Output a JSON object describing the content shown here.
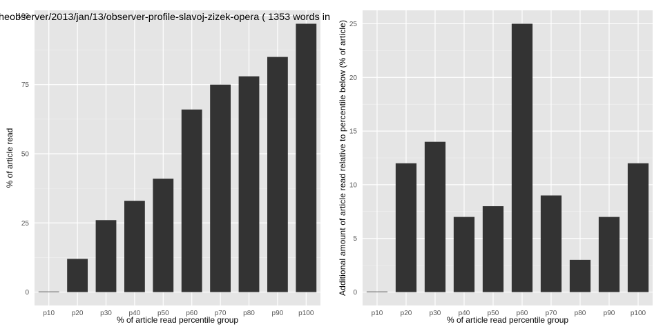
{
  "chart_data": [
    {
      "type": "bar",
      "title": "heobserver/2013/jan/13/observer-profile-slavoj-zizek-opera ( 1353 words in",
      "xlabel": "% of article read percentile group",
      "ylabel": "% of article read",
      "categories": [
        "p10",
        "p20",
        "p30",
        "p40",
        "p50",
        "p60",
        "p70",
        "p80",
        "p90",
        "p100"
      ],
      "values": [
        0,
        12,
        26,
        33,
        41,
        66,
        75,
        78,
        85,
        97
      ],
      "ylim": [
        -4.85,
        101.85
      ],
      "yticks": [
        0,
        25,
        50,
        75,
        100
      ],
      "grid": true,
      "bar_color": "#333333",
      "panel_color": "#e5e5e5",
      "grid_color": "#ffffff"
    },
    {
      "type": "bar",
      "title": "",
      "xlabel": "% of article read percentile group",
      "ylabel": "Additional amount of article read relative to percentile below (% of article)",
      "categories": [
        "p10",
        "p20",
        "p30",
        "p40",
        "p50",
        "p60",
        "p70",
        "p80",
        "p90",
        "p100"
      ],
      "values": [
        0,
        12,
        14,
        7,
        8,
        25,
        9,
        3,
        7,
        12
      ],
      "ylim": [
        -1.25,
        26.25
      ],
      "yticks": [
        0,
        5,
        10,
        15,
        20,
        25
      ],
      "grid": true,
      "bar_color": "#333333",
      "panel_color": "#e5e5e5",
      "grid_color": "#ffffff"
    }
  ]
}
